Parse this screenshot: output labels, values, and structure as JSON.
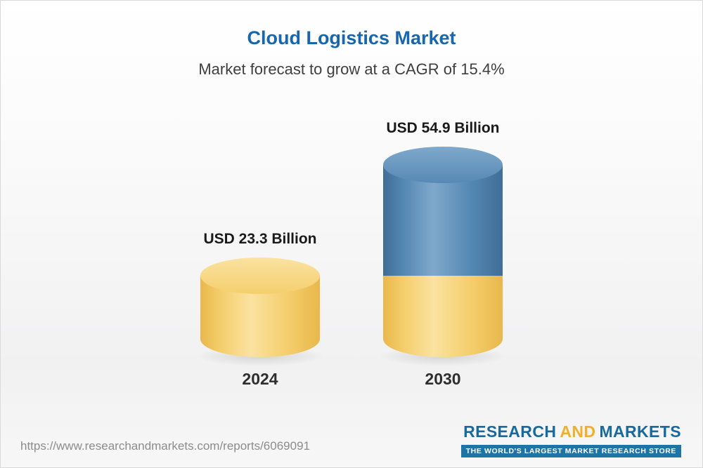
{
  "header": {
    "title": "Cloud Logistics Market",
    "subtitle": "Market forecast to grow at a CAGR of 15.4%"
  },
  "chart_data": {
    "type": "bar",
    "style": "3d-cylinder",
    "title": "Cloud Logistics Market",
    "subtitle": "Market forecast to grow at a CAGR of 15.4%",
    "cagr_percent": 15.4,
    "unit": "USD Billion",
    "categories": [
      "2024",
      "2030"
    ],
    "values": [
      23.3,
      54.9
    ],
    "xlabel": "",
    "ylabel": "",
    "legend": "none",
    "grid": false,
    "bars": [
      {
        "year": "2024",
        "label": "USD 23.3 Billion",
        "value": 23.3,
        "segments": [
          {
            "color": "yellow",
            "value": 23.3
          }
        ]
      },
      {
        "year": "2030",
        "label": "USD 54.9 Billion",
        "value": 54.9,
        "segments": [
          {
            "color": "blue",
            "value": 31.6
          },
          {
            "color": "yellow",
            "value": 23.3
          }
        ]
      }
    ]
  },
  "colors": {
    "title_blue": "#1766AE",
    "yellow_main": "#F5CF6E",
    "yellow_edge": "#E8B84C",
    "yellow_light": "#FAE2A0",
    "blue_main": "#5689B5",
    "blue_edge": "#3F6E97",
    "blue_light": "#7FA9CB",
    "logo_blue": "#17699E",
    "logo_yellow": "#F2AF2D",
    "tagline_bg": "#1C74A7"
  },
  "footer": {
    "url": "https://www.researchandmarkets.com/reports/6069091",
    "logo": {
      "part1": "RESEARCH",
      "part2": "AND",
      "part3": "MARKETS",
      "tagline": "THE WORLD'S LARGEST MARKET RESEARCH STORE"
    }
  }
}
